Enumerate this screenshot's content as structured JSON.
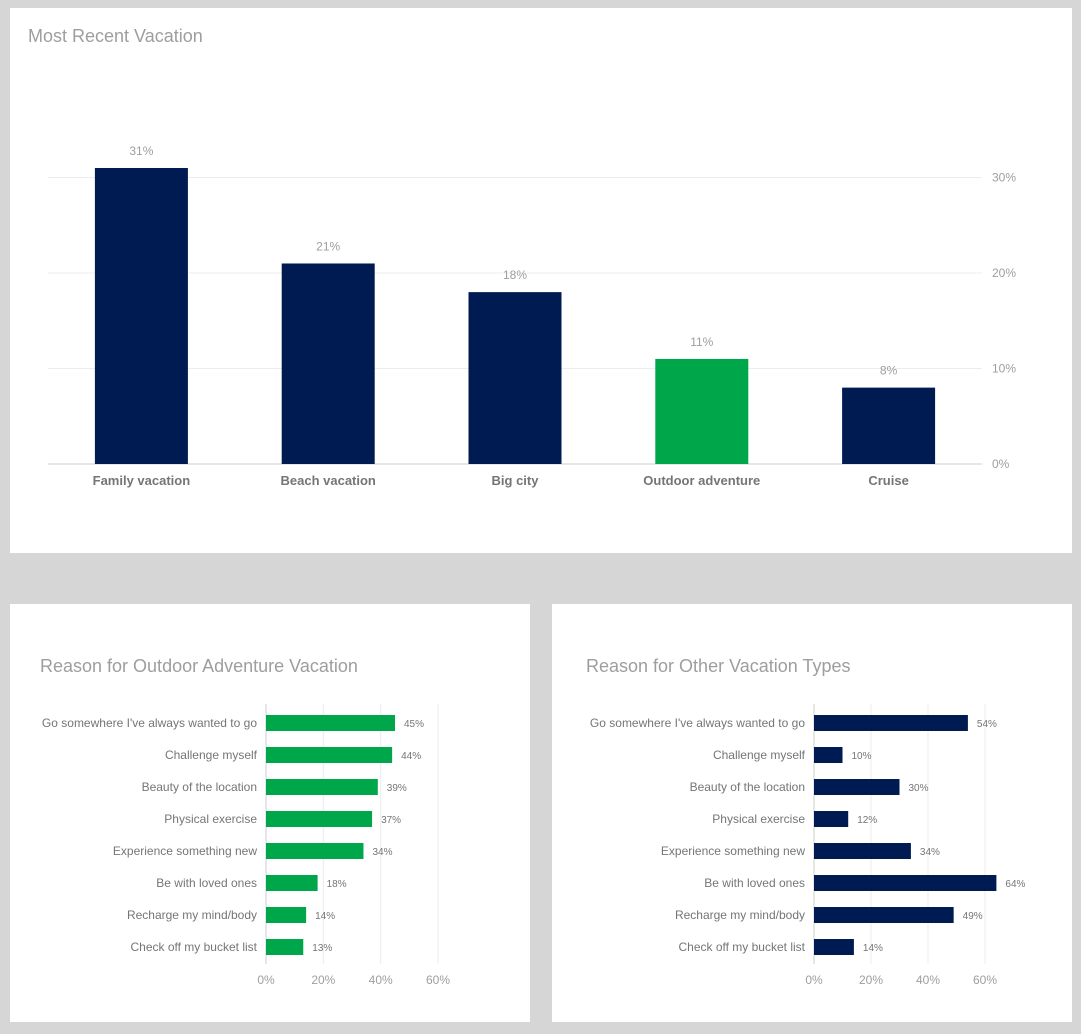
{
  "chart_data": [
    {
      "type": "bar",
      "title": "Most Recent Vacation",
      "categories": [
        "Family vacation",
        "Beach vacation",
        "Big city",
        "Outdoor adventure",
        "Cruise"
      ],
      "values": [
        31,
        21,
        18,
        11,
        8
      ],
      "value_labels": [
        "31%",
        "21%",
        "18%",
        "11%",
        "8%"
      ],
      "bar_colors": [
        "#001a52",
        "#001a52",
        "#001a52",
        "#00a64a",
        "#001a52"
      ],
      "ytick_labels": [
        "0%",
        "10%",
        "20%",
        "30%"
      ],
      "ylim": [
        0,
        31
      ],
      "ytick_values": [
        0,
        10,
        20,
        30
      ],
      "y_axis_side": "right",
      "grid": true
    },
    {
      "type": "bar",
      "orientation": "horizontal",
      "title": "Reason for Outdoor Adventure Vacation",
      "categories": [
        "Go somewhere I've always wanted to go",
        "Challenge myself",
        "Beauty of the location",
        "Physical exercise",
        "Experience something new",
        "Be with loved ones",
        "Recharge my mind/body",
        "Check off my bucket list"
      ],
      "values": [
        45,
        44,
        39,
        37,
        34,
        18,
        14,
        13
      ],
      "value_labels": [
        "45%",
        "44%",
        "39%",
        "37%",
        "34%",
        "18%",
        "14%",
        "13%"
      ],
      "color": "#00a64a",
      "xtick_labels": [
        "0%",
        "20%",
        "40%",
        "60%"
      ],
      "xtick_values": [
        0,
        20,
        40,
        60
      ],
      "xlim": [
        0,
        60
      ],
      "grid": true
    },
    {
      "type": "bar",
      "orientation": "horizontal",
      "title": "Reason for Other Vacation Types",
      "categories": [
        "Go somewhere I've always wanted to go",
        "Challenge myself",
        "Beauty of the location",
        "Physical exercise",
        "Experience something new",
        "Be with loved ones",
        "Recharge my mind/body",
        "Check off my bucket list"
      ],
      "values": [
        54,
        10,
        30,
        12,
        34,
        64,
        49,
        14
      ],
      "value_labels": [
        "54%",
        "10%",
        "30%",
        "12%",
        "34%",
        "64%",
        "49%",
        "14%"
      ],
      "color": "#001a52",
      "xtick_labels": [
        "0%",
        "20%",
        "40%",
        "60%"
      ],
      "xtick_values": [
        0,
        20,
        40,
        60
      ],
      "xlim": [
        0,
        60
      ],
      "grid": true
    }
  ]
}
